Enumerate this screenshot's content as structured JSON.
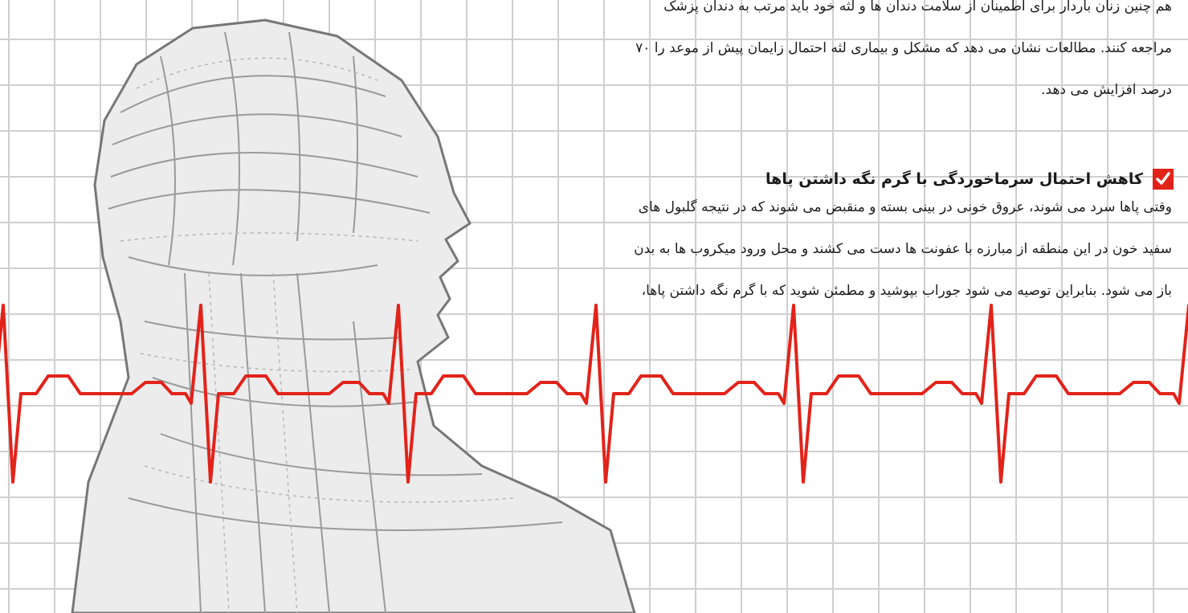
{
  "article": {
    "intro_lines": [
      "هم چنین زنان باردار برای اطمینان از سلامت دندان ها و لثه خود باید مرتب به دندان پزشک",
      "مراجعه کنند. مطالعات نشان می دهد که مشکل و بیماری لثه احتمال زایمان پیش از موعد را ۷۰",
      "درصد افزایش می دهد."
    ],
    "section": {
      "heading": "کاهش احتمال سرماخوردگی با گرم نگه داشتن پاها",
      "lines": [
        "وقتی پاها سرد می شوند، عروق خونی در بینی بسته و منقبض می شوند که در نتیجه گلبول های",
        "سفید خون در این منطقه از مبارزه با عفونت ها دست می کشند و محل ورود میکروب ها به بدن",
        "باز می شود. بنابراین توصیه می شود جوراب بپوشید و مطمئن شوید که با گرم نگه داشتن پاها،"
      ]
    }
  },
  "colors": {
    "ecg_line": "#e2231a",
    "check_box": "#e2231a",
    "grid": "#cfcfcf",
    "illustration": "#8a8a8a"
  },
  "icons": {
    "heading_marker": "check-icon"
  }
}
